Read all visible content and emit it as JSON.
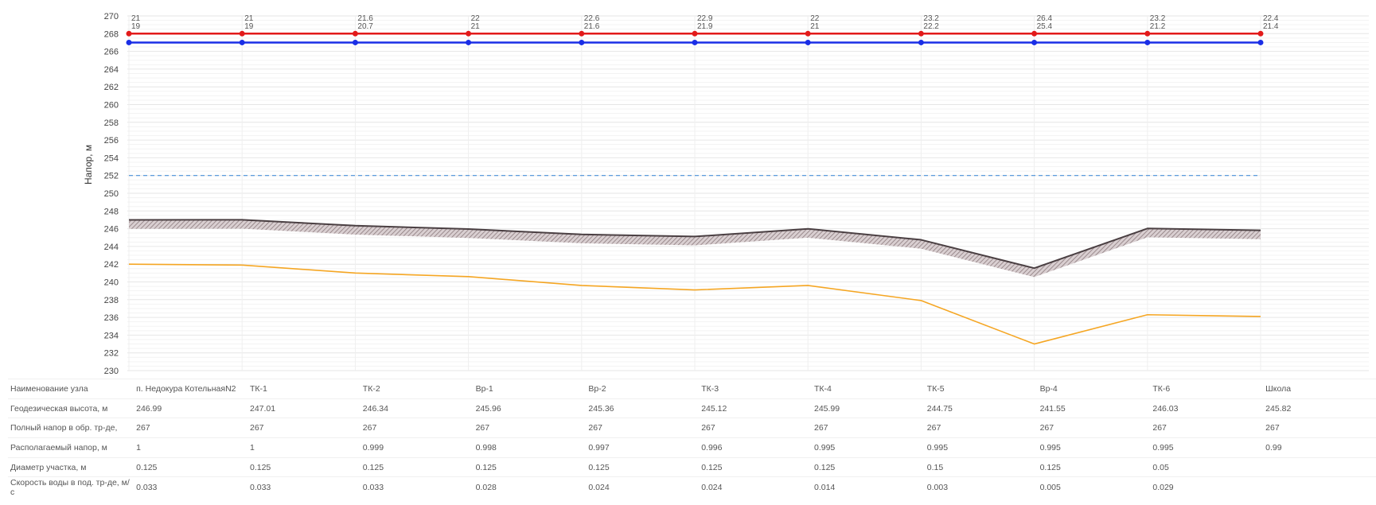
{
  "chart_data": {
    "type": "line",
    "ylabel": "Напор, м",
    "ylim": [
      230,
      270
    ],
    "yticks": [
      230,
      232,
      234,
      236,
      238,
      240,
      242,
      244,
      246,
      248,
      250,
      252,
      254,
      256,
      258,
      260,
      262,
      264,
      266,
      268,
      270
    ],
    "nodes": [
      "п. Недокура КотельнаяN2",
      "ТК-1",
      "ТК-2",
      "Вр-1",
      "Вр-2",
      "ТК-3",
      "ТК-4",
      "ТК-5",
      "Вр-4",
      "ТК-6",
      "Школа"
    ],
    "top_labels": [
      "21",
      "21",
      "21.6",
      "22",
      "22.6",
      "22.9",
      "22",
      "23.2",
      "26.4",
      "23.2",
      "22.4"
    ],
    "second_labels": [
      "19",
      "19",
      "20.7",
      "21",
      "21.6",
      "21.9",
      "21",
      "22.2",
      "25.4",
      "21.2",
      "21.4"
    ],
    "reference_line": 252,
    "series": [
      {
        "values": [
          268,
          268,
          268,
          268,
          268,
          268,
          268,
          268,
          268,
          268,
          268
        ],
        "color": "#e21a1a"
      },
      {
        "values": [
          267,
          267,
          267,
          267,
          267,
          267,
          267,
          267,
          267,
          267,
          267
        ],
        "color": "#1a2ee6"
      },
      {
        "values": [
          246.99,
          247.01,
          246.34,
          245.96,
          245.36,
          245.12,
          245.99,
          244.75,
          241.55,
          246.03,
          245.82
        ],
        "color": "#4a3f42"
      },
      {
        "values": [
          242,
          241.9,
          241,
          240.6,
          239.6,
          239.1,
          239.6,
          237.9,
          233,
          236.3,
          236.1
        ],
        "color": "#f5a623"
      }
    ]
  },
  "table": {
    "rows": [
      {
        "label": "Наименование узла",
        "values": [
          "п. Недокура КотельнаяN2",
          "ТК-1",
          "ТК-2",
          "Вр-1",
          "Вр-2",
          "ТК-3",
          "ТК-4",
          "ТК-5",
          "Вр-4",
          "ТК-6",
          "Школа"
        ]
      },
      {
        "label": "Геодезическая высота, м",
        "values": [
          "246.99",
          "247.01",
          "246.34",
          "245.96",
          "245.36",
          "245.12",
          "245.99",
          "244.75",
          "241.55",
          "246.03",
          "245.82"
        ]
      },
      {
        "label": "Полный напор в обр. тр-де,",
        "values": [
          "267",
          "267",
          "267",
          "267",
          "267",
          "267",
          "267",
          "267",
          "267",
          "267",
          "267"
        ]
      },
      {
        "label": "Располагаемый напор, м",
        "values": [
          "1",
          "1",
          "0.999",
          "0.998",
          "0.997",
          "0.996",
          "0.995",
          "0.995",
          "0.995",
          "0.995",
          "0.99"
        ]
      },
      {
        "label": "Диаметр участка, м",
        "values": [
          "0.125",
          "0.125",
          "0.125",
          "0.125",
          "0.125",
          "0.125",
          "0.125",
          "0.15",
          "0.125",
          "0.05",
          ""
        ]
      },
      {
        "label": "Скорость воды в под. тр-де, м/с",
        "values": [
          "0.033",
          "0.033",
          "0.033",
          "0.028",
          "0.024",
          "0.024",
          "0.014",
          "0.003",
          "0.005",
          "0.029",
          ""
        ]
      }
    ]
  }
}
